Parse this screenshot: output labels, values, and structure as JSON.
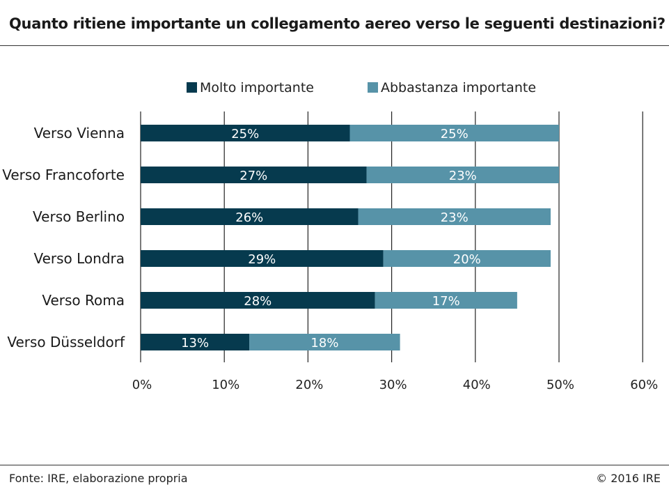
{
  "title": "Quanto ritiene importante un collegamento aereo verso le seguenti destinazioni?",
  "footer": {
    "source": "Fonte: IRE, elaborazione propria",
    "copyright": "© 2016 IRE"
  },
  "colors": {
    "series1": "#063a4e",
    "series2": "#5793a8"
  },
  "chart_data": {
    "type": "bar",
    "orientation": "horizontal",
    "stacked": true,
    "categories": [
      "Verso Vienna",
      "Verso Francoforte",
      "Verso Berlino",
      "Verso Londra",
      "Verso Roma",
      "Verso Düsseldorf"
    ],
    "series": [
      {
        "name": "Molto importante",
        "values": [
          25,
          27,
          26,
          29,
          28,
          13
        ],
        "labels": [
          "25%",
          "27%",
          "26%",
          "29%",
          "28%",
          "13%"
        ]
      },
      {
        "name": "Abbastanza importante",
        "values": [
          25,
          23,
          23,
          20,
          17,
          18
        ],
        "labels": [
          "25%",
          "23%",
          "23%",
          "20%",
          "17%",
          "18%"
        ]
      }
    ],
    "xlim": [
      0,
      60
    ],
    "xticks": [
      0,
      10,
      20,
      30,
      40,
      50,
      60
    ],
    "xtick_labels": [
      "0%",
      "10%",
      "20%",
      "30%",
      "40%",
      "50%",
      "60%"
    ],
    "grid": "vertical",
    "legend_position": "top"
  }
}
